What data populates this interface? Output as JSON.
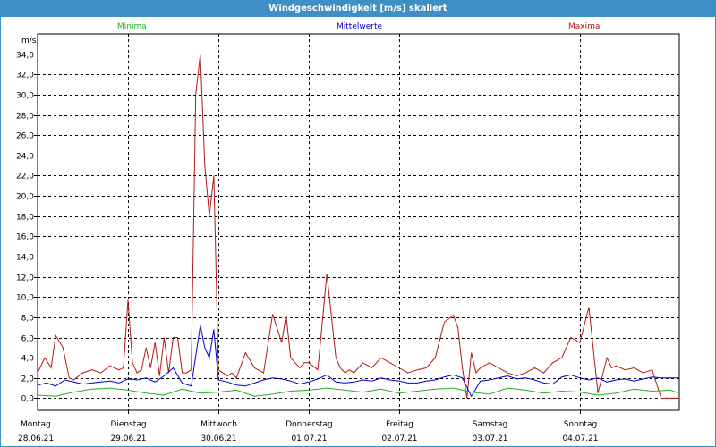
{
  "window": {
    "title": "Windgeschwindigkeit [m/s] skaliert"
  },
  "legend": {
    "min_label": "Minima",
    "mid_label": "Mittelwerte",
    "max_label": "Maxima"
  },
  "axis": {
    "y_unit": "m/s"
  },
  "colors": {
    "min": "#22b022",
    "mid": "#0000cc",
    "max": "#b01818",
    "grid": "#000000",
    "title_bar": "#3d8fc6"
  },
  "chart_data": {
    "type": "line",
    "title": "Windgeschwindigkeit [m/s] skaliert",
    "ylabel": "m/s",
    "xlabel": "",
    "ylim": [
      -1.2,
      36
    ],
    "xlim": [
      0,
      7.1
    ],
    "grid": true,
    "legend_placement": "top",
    "y_ticks": [
      "0,0",
      "2,0",
      "4,0",
      "6,0",
      "8,0",
      "10,0",
      "12,0",
      "14,0",
      "16,0",
      "18,0",
      "20,0",
      "22,0",
      "24,0",
      "26,0",
      "28,0",
      "30,0",
      "32,0",
      "34,0"
    ],
    "y_tick_values": [
      0,
      2,
      4,
      6,
      8,
      10,
      12,
      14,
      16,
      18,
      20,
      22,
      24,
      26,
      28,
      30,
      32,
      34
    ],
    "x_ticks": [
      {
        "day": "Montag",
        "date": "28.06.21"
      },
      {
        "day": "Dienstag",
        "date": "29.06.21"
      },
      {
        "day": "Mittwoch",
        "date": "30.06.21"
      },
      {
        "day": "Donnerstag",
        "date": "01.07.21"
      },
      {
        "day": "Freitag",
        "date": "02.07.21"
      },
      {
        "day": "Samstag",
        "date": "03.07.21"
      },
      {
        "day": "Sonntag",
        "date": "04.07.21"
      }
    ],
    "x_unit": "days since Montag 28.06.21",
    "series": [
      {
        "name": "Maxima",
        "x": [
          0,
          0.08,
          0.15,
          0.2,
          0.28,
          0.35,
          0.4,
          0.5,
          0.6,
          0.7,
          0.8,
          0.9,
          0.95,
          1.0,
          1.05,
          1.1,
          1.15,
          1.2,
          1.25,
          1.3,
          1.35,
          1.4,
          1.45,
          1.5,
          1.55,
          1.6,
          1.65,
          1.7,
          1.75,
          1.8,
          1.85,
          1.9,
          1.95,
          2.0,
          2.05,
          2.1,
          2.15,
          2.2,
          2.3,
          2.4,
          2.5,
          2.6,
          2.7,
          2.75,
          2.8,
          2.85,
          2.9,
          2.95,
          3.0,
          3.1,
          3.2,
          3.3,
          3.35,
          3.4,
          3.45,
          3.5,
          3.6,
          3.7,
          3.8,
          3.9,
          4.0,
          4.1,
          4.2,
          4.3,
          4.4,
          4.5,
          4.6,
          4.65,
          4.7,
          4.75,
          4.8,
          4.85,
          4.9,
          5.0,
          5.1,
          5.2,
          5.3,
          5.4,
          5.5,
          5.6,
          5.7,
          5.8,
          5.9,
          6.0,
          6.1,
          6.2,
          6.3,
          6.35,
          6.4,
          6.5,
          6.6,
          6.7,
          6.8,
          6.9,
          7.0,
          7.05,
          7.1
        ],
        "y": [
          2.5,
          4.0,
          3.0,
          6.2,
          5.0,
          2.0,
          1.8,
          2.5,
          2.8,
          2.5,
          3.2,
          2.8,
          3.0,
          9.7,
          3.5,
          2.5,
          2.8,
          5.0,
          3.0,
          5.5,
          2.2,
          6.0,
          2.5,
          6.0,
          6.0,
          2.5,
          2.5,
          2.8,
          30.0,
          34.0,
          23.0,
          18.0,
          22.0,
          2.8,
          2.5,
          2.2,
          2.5,
          2.0,
          4.5,
          3.0,
          2.5,
          8.3,
          5.5,
          8.2,
          4.0,
          3.5,
          3.0,
          3.5,
          3.5,
          2.8,
          12.3,
          4.0,
          3.0,
          2.5,
          2.8,
          2.5,
          3.5,
          3.0,
          4.0,
          3.5,
          3.0,
          2.5,
          2.8,
          3.0,
          4.0,
          7.5,
          8.2,
          7.0,
          3.0,
          0.0,
          4.5,
          2.5,
          3.0,
          3.5,
          3.0,
          2.5,
          2.2,
          2.5,
          3.0,
          2.5,
          3.5,
          4.0,
          6.0,
          5.5,
          9.0,
          0.5,
          4.0,
          3.0,
          3.2,
          2.8,
          3.0,
          2.5,
          2.8,
          0.0,
          0.0,
          0.0,
          0.0
        ]
      },
      {
        "name": "Mittelwerte",
        "x": [
          0,
          0.1,
          0.2,
          0.3,
          0.4,
          0.5,
          0.6,
          0.7,
          0.8,
          0.9,
          1.0,
          1.1,
          1.2,
          1.3,
          1.4,
          1.5,
          1.6,
          1.7,
          1.8,
          1.85,
          1.9,
          1.95,
          2.0,
          2.1,
          2.2,
          2.3,
          2.4,
          2.5,
          2.6,
          2.7,
          2.8,
          2.9,
          3.0,
          3.1,
          3.2,
          3.3,
          3.4,
          3.5,
          3.6,
          3.7,
          3.8,
          3.9,
          4.0,
          4.1,
          4.2,
          4.3,
          4.4,
          4.5,
          4.6,
          4.7,
          4.8,
          4.9,
          5.0,
          5.1,
          5.2,
          5.3,
          5.4,
          5.5,
          5.6,
          5.7,
          5.8,
          5.9,
          6.0,
          6.1,
          6.2,
          6.3,
          6.4,
          6.5,
          6.6,
          6.7,
          6.8,
          6.9,
          7.0,
          7.1
        ],
        "y": [
          1.3,
          1.5,
          1.2,
          1.8,
          1.6,
          1.4,
          1.5,
          1.6,
          1.7,
          1.5,
          1.9,
          1.8,
          2.0,
          1.6,
          2.2,
          3.0,
          1.5,
          1.2,
          7.2,
          5.0,
          4.0,
          6.8,
          1.8,
          1.6,
          1.3,
          1.2,
          1.5,
          1.8,
          2.0,
          1.9,
          1.7,
          1.4,
          1.6,
          1.9,
          2.3,
          1.6,
          1.5,
          1.6,
          1.8,
          1.7,
          2.0,
          1.8,
          1.7,
          1.5,
          1.5,
          1.7,
          1.8,
          2.1,
          2.3,
          2.0,
          0.2,
          1.7,
          1.8,
          2.0,
          2.2,
          1.9,
          2.0,
          1.8,
          1.5,
          1.4,
          2.1,
          2.3,
          2.0,
          1.8,
          2.0,
          1.6,
          1.8,
          1.9,
          1.7,
          1.9,
          2.1,
          2.0,
          2.0,
          2.0
        ]
      },
      {
        "name": "Minima",
        "x": [
          0,
          0.2,
          0.4,
          0.6,
          0.8,
          1.0,
          1.2,
          1.4,
          1.6,
          1.8,
          2.0,
          2.2,
          2.4,
          2.6,
          2.8,
          3.0,
          3.2,
          3.4,
          3.6,
          3.8,
          4.0,
          4.2,
          4.4,
          4.6,
          4.8,
          5.0,
          5.2,
          5.4,
          5.6,
          5.8,
          6.0,
          6.2,
          6.4,
          6.6,
          6.8,
          7.0,
          7.1
        ],
        "y": [
          0.3,
          0.2,
          0.6,
          0.9,
          1.0,
          0.8,
          0.5,
          0.3,
          0.9,
          0.5,
          0.6,
          0.8,
          0.2,
          0.4,
          0.7,
          0.8,
          1.0,
          0.8,
          0.6,
          0.9,
          0.5,
          0.7,
          0.9,
          1.0,
          0.6,
          0.4,
          1.0,
          0.8,
          0.5,
          0.7,
          0.6,
          0.3,
          0.5,
          0.9,
          0.7,
          0.8,
          0.5
        ]
      }
    ]
  }
}
